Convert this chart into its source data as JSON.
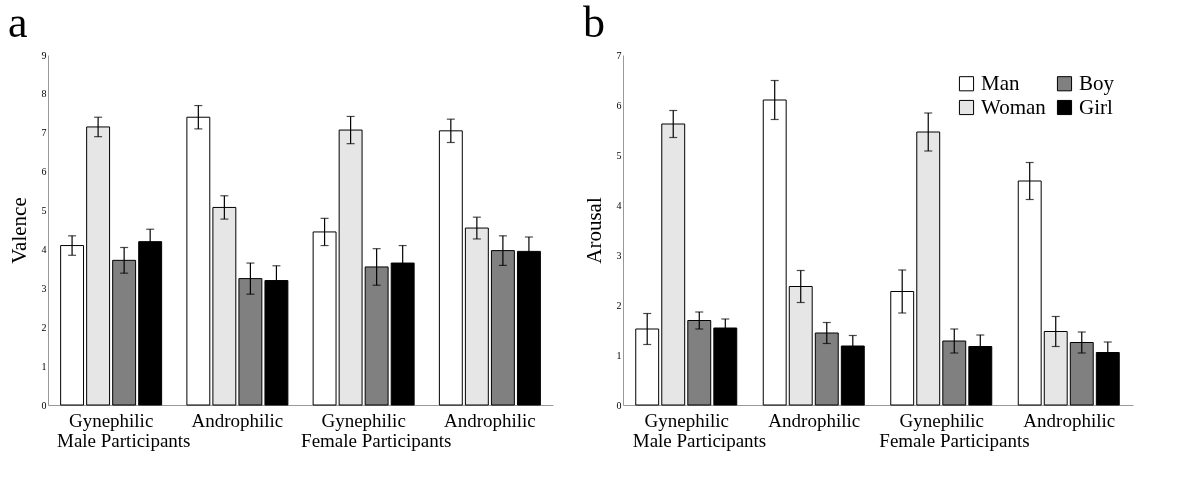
{
  "chart_data": [
    {
      "type": "bar",
      "title": "a",
      "ylabel": "Valence",
      "categories": [
        "Gynephilic",
        "Androphilic",
        "Gynephilic",
        "Androphilic"
      ],
      "annotations": [
        "Male Participants",
        "Female Participants"
      ],
      "ylim": [
        0,
        9
      ],
      "yticks": [
        0,
        1,
        2,
        3,
        4,
        5,
        6,
        7,
        8,
        9
      ],
      "grid": false,
      "legend": false,
      "series": [
        {
          "color": "#ffffff",
          "values": [
            4.1,
            7.4,
            4.45,
            7.05
          ],
          "errors": [
            0.25,
            0.3,
            0.35,
            0.3
          ]
        },
        {
          "color": "#e6e6e6",
          "values": [
            7.15,
            5.08,
            7.07,
            4.55
          ],
          "errors": [
            0.25,
            0.3,
            0.35,
            0.28
          ]
        },
        {
          "color": "#808080",
          "values": [
            3.72,
            3.25,
            3.55,
            3.97
          ],
          "errors": [
            0.33,
            0.4,
            0.47,
            0.38
          ]
        },
        {
          "color": "#000000",
          "values": [
            4.2,
            3.2,
            3.65,
            3.95
          ],
          "errors": [
            0.32,
            0.38,
            0.45,
            0.37
          ]
        }
      ]
    },
    {
      "type": "bar",
      "title": "b",
      "ylabel": "Arousal",
      "categories": [
        "Gynephilic",
        "Androphilic",
        "Gynephilic",
        "Androphilic"
      ],
      "annotations": [
        "Male Participants",
        "Female Participants"
      ],
      "ylim": [
        0,
        7
      ],
      "yticks": [
        0,
        1,
        2,
        3,
        4,
        5,
        6,
        7
      ],
      "grid": false,
      "legend": "top right",
      "series": [
        {
          "name": "Man",
          "color": "#ffffff",
          "values": [
            1.52,
            6.1,
            2.27,
            4.48
          ],
          "errors": [
            0.31,
            0.39,
            0.43,
            0.37
          ]
        },
        {
          "name": "Woman",
          "color": "#e6e6e6",
          "values": [
            5.62,
            2.37,
            5.46,
            1.47
          ],
          "errors": [
            0.27,
            0.32,
            0.38,
            0.3
          ]
        },
        {
          "name": "Boy",
          "color": "#808080",
          "values": [
            1.69,
            1.44,
            1.28,
            1.25
          ],
          "errors": [
            0.17,
            0.21,
            0.24,
            0.21
          ]
        },
        {
          "name": "Girl",
          "color": "#000000",
          "values": [
            1.54,
            1.18,
            1.17,
            1.05
          ],
          "errors": [
            0.18,
            0.21,
            0.23,
            0.21
          ]
        }
      ]
    }
  ]
}
